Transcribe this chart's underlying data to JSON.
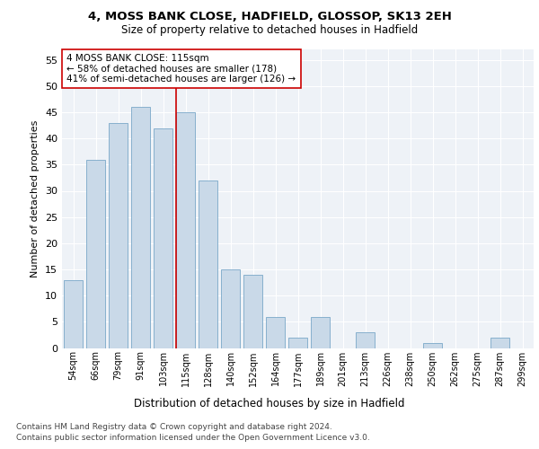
{
  "title_line1": "4, MOSS BANK CLOSE, HADFIELD, GLOSSOP, SK13 2EH",
  "title_line2": "Size of property relative to detached houses in Hadfield",
  "xlabel": "Distribution of detached houses by size in Hadfield",
  "ylabel": "Number of detached properties",
  "categories": [
    "54sqm",
    "66sqm",
    "79sqm",
    "91sqm",
    "103sqm",
    "115sqm",
    "128sqm",
    "140sqm",
    "152sqm",
    "164sqm",
    "177sqm",
    "189sqm",
    "201sqm",
    "213sqm",
    "226sqm",
    "238sqm",
    "250sqm",
    "262sqm",
    "275sqm",
    "287sqm",
    "299sqm"
  ],
  "values": [
    13,
    36,
    43,
    46,
    42,
    45,
    32,
    15,
    14,
    6,
    2,
    6,
    0,
    3,
    0,
    0,
    1,
    0,
    0,
    2,
    0
  ],
  "bar_color": "#c9d9e8",
  "bar_edge_color": "#7aa8c8",
  "highlight_index": 5,
  "annotation_line1": "4 MOSS BANK CLOSE: 115sqm",
  "annotation_line2": "← 58% of detached houses are smaller (178)",
  "annotation_line3": "41% of semi-detached houses are larger (126) →",
  "red_color": "#cc0000",
  "ylim": [
    0,
    57
  ],
  "yticks": [
    0,
    5,
    10,
    15,
    20,
    25,
    30,
    35,
    40,
    45,
    50,
    55
  ],
  "footnote1": "Contains HM Land Registry data © Crown copyright and database right 2024.",
  "footnote2": "Contains public sector information licensed under the Open Government Licence v3.0.",
  "bg_color": "#eef2f7"
}
